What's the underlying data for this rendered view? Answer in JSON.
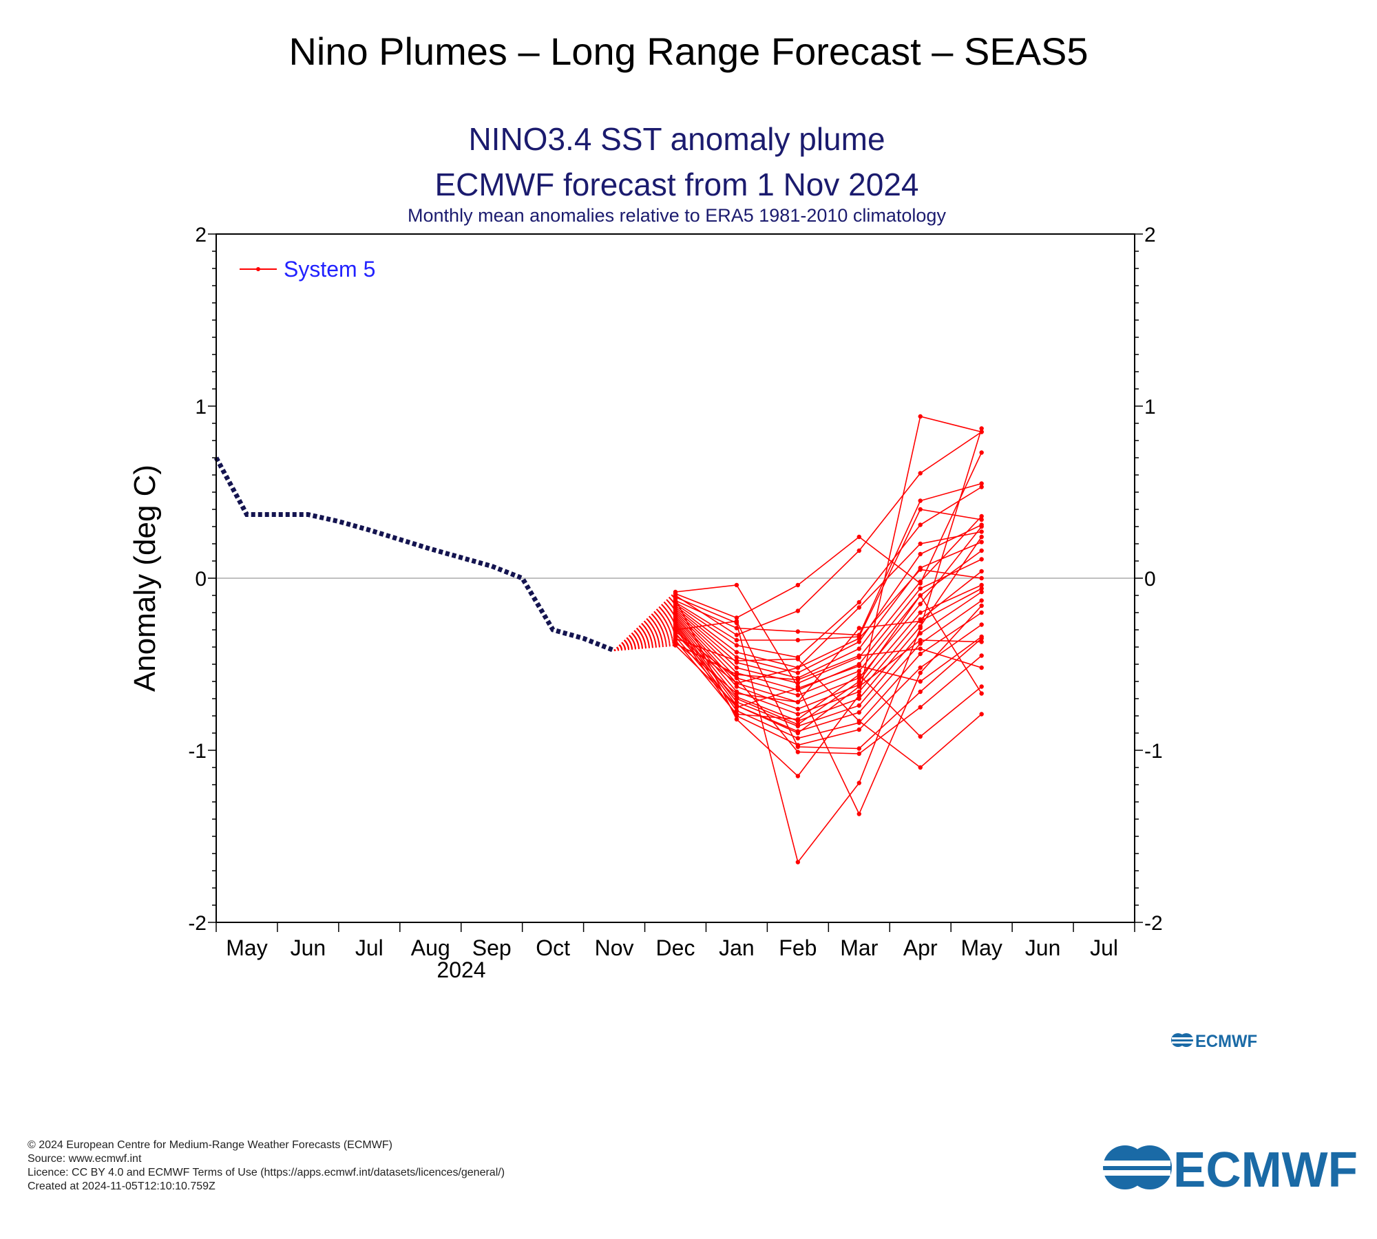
{
  "page": {
    "title": "Nino Plumes – Long Range Forecast – SEAS5"
  },
  "logo": {
    "text": "ECMWF",
    "color": "#1a6aa6"
  },
  "footer": {
    "lines": [
      "© 2024 European Centre for Medium-Range Weather Forecasts (ECMWF)",
      "Source: www.ecmwf.int",
      "Licence: CC BY 4.0 and ECMWF Terms of Use (https://apps.ecmwf.int/datasets/licences/general/)",
      "Created at 2024-11-05T12:10:10.759Z"
    ]
  },
  "chart_data": {
    "type": "line",
    "title": "NINO3.4 SST anomaly plume",
    "subtitle": "ECMWF forecast from 1 Nov 2024",
    "subsubtitle": "Monthly mean anomalies relative to ERA5 1981-2010 climatology",
    "ylabel": "Anomaly (deg C)",
    "ylim": [
      -2,
      2
    ],
    "yticks": [
      -2,
      -1,
      0,
      1,
      2
    ],
    "x_year_label": "2024",
    "categories": [
      "May",
      "Jun",
      "Jul",
      "Aug",
      "Sep",
      "Oct",
      "Nov",
      "Dec",
      "Jan",
      "Feb",
      "Mar",
      "Apr",
      "May",
      "Jun",
      "Jul"
    ],
    "legend": {
      "label": "System 5",
      "position": "top-left"
    },
    "zero_line": true,
    "colors": {
      "title": "#1b1b6e",
      "observed": "#141450",
      "forecast": "#ff0000",
      "legend_text": "#2222ff"
    },
    "observed": {
      "x": [
        -0.5,
        0,
        1,
        1.5,
        2,
        3,
        3.5,
        4,
        4.5,
        5,
        5.5,
        6
      ],
      "values": [
        0.7,
        0.37,
        0.37,
        0.33,
        0.28,
        0.17,
        0.12,
        0.07,
        0.0,
        -0.3,
        -0.35,
        -0.42
      ]
    },
    "forecast_x": [
      6,
      7,
      8,
      9,
      10,
      11,
      12
    ],
    "ensemble": [
      [
        -0.42,
        -0.08,
        -0.04,
        -0.63,
        -1.37,
        -0.55,
        -0.16
      ],
      [
        -0.42,
        -0.09,
        -0.23,
        -0.04,
        0.24,
        -0.03,
        0.73
      ],
      [
        -0.42,
        -0.1,
        -0.33,
        -0.19,
        0.16,
        0.61,
        0.85
      ],
      [
        -0.42,
        -0.11,
        -0.26,
        -1.65,
        -1.19,
        -0.29,
        0.87
      ],
      [
        -0.42,
        -0.12,
        -0.82,
        -1.15,
        -0.68,
        0.94,
        0.85
      ],
      [
        -0.42,
        -0.13,
        -0.29,
        -0.31,
        -0.33,
        0.45,
        0.55
      ],
      [
        -0.42,
        -0.14,
        -0.36,
        -0.36,
        -0.34,
        0.4,
        0.34
      ],
      [
        -0.42,
        -0.15,
        -0.39,
        -0.46,
        -0.14,
        0.31,
        0.53
      ],
      [
        -0.42,
        -0.16,
        -0.43,
        -0.52,
        -0.17,
        0.2,
        0.27
      ],
      [
        -0.42,
        -0.17,
        -0.46,
        -0.55,
        -0.37,
        0.14,
        0.31
      ],
      [
        -0.42,
        -0.18,
        -0.49,
        -0.58,
        -0.41,
        0.06,
        0.21
      ],
      [
        -0.42,
        -0.19,
        -0.52,
        -0.61,
        -0.46,
        -0.02,
        0.36
      ],
      [
        -0.42,
        -0.2,
        -0.55,
        -0.65,
        -0.5,
        -0.06,
        0.11
      ],
      [
        -0.42,
        -0.21,
        -0.58,
        -0.68,
        -0.54,
        -0.1,
        0.16
      ],
      [
        -0.42,
        -0.22,
        -0.61,
        -0.72,
        -0.58,
        -0.15,
        0.3
      ],
      [
        -0.42,
        -0.23,
        -0.63,
        -0.76,
        -0.62,
        -0.2,
        -0.04
      ],
      [
        -0.42,
        -0.24,
        -0.66,
        -0.79,
        -0.66,
        -0.24,
        0.04
      ],
      [
        -0.42,
        -0.25,
        -0.69,
        -0.83,
        -0.7,
        -0.28,
        0.24
      ],
      [
        -0.42,
        -0.26,
        -0.72,
        -0.86,
        -0.74,
        -0.32,
        -0.08
      ],
      [
        -0.42,
        -0.27,
        -0.74,
        -0.89,
        -0.78,
        -0.38,
        -0.13
      ],
      [
        -0.42,
        -0.28,
        -0.77,
        -0.93,
        -0.84,
        -0.44,
        -0.2
      ],
      [
        -0.42,
        -0.29,
        -0.8,
        -0.97,
        -0.88,
        -0.52,
        -0.27
      ],
      [
        -0.42,
        -0.3,
        -0.25,
        -0.98,
        -0.99,
        -0.66,
        -0.35
      ],
      [
        -0.42,
        -0.31,
        -0.58,
        -1.01,
        -1.02,
        -0.75,
        -0.45
      ],
      [
        -0.42,
        -0.32,
        -0.7,
        -0.85,
        -0.6,
        -0.1,
        -0.67
      ],
      [
        -0.42,
        -0.33,
        -0.61,
        -0.52,
        -0.35,
        0.05,
        0.0
      ],
      [
        -0.42,
        -0.34,
        -0.75,
        -0.64,
        -0.51,
        -0.6,
        -0.34
      ],
      [
        -0.42,
        -0.35,
        -0.48,
        -0.47,
        -0.83,
        -1.1,
        -0.79
      ],
      [
        -0.42,
        -0.36,
        -0.79,
        -0.82,
        -0.56,
        -0.92,
        -0.63
      ],
      [
        -0.42,
        -0.37,
        -0.67,
        -0.72,
        -0.29,
        -0.25,
        -0.06
      ],
      [
        -0.42,
        -0.38,
        -0.56,
        -0.59,
        -0.45,
        -0.41,
        -0.52
      ],
      [
        -0.42,
        -0.39,
        -0.74,
        -0.9,
        -0.63,
        -0.36,
        -0.37
      ]
    ]
  }
}
